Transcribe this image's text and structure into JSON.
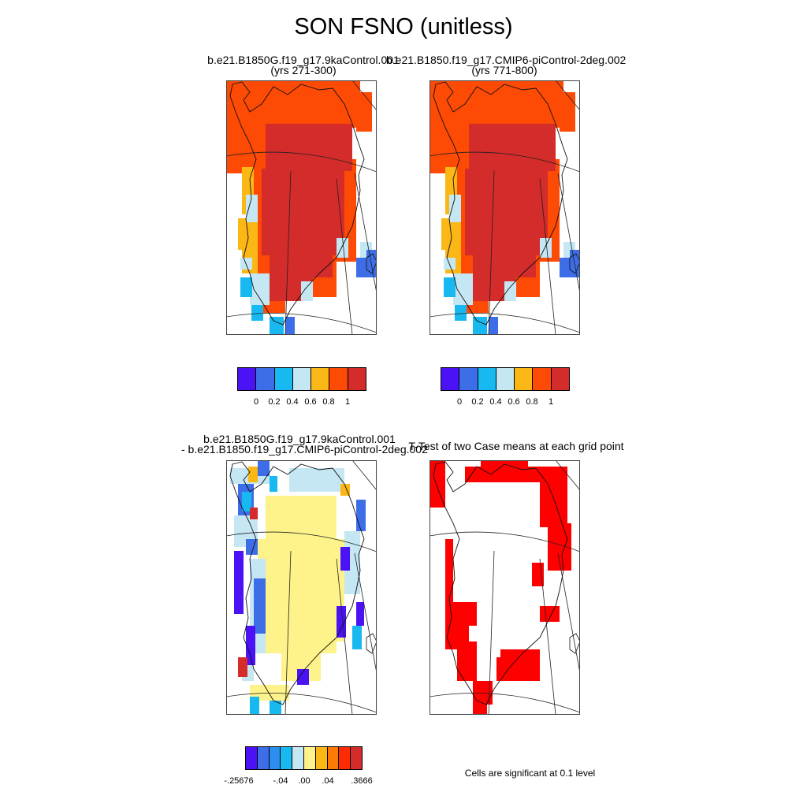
{
  "title": "SON FSNO (unitless)",
  "panels": {
    "case1": {
      "name": "b.e21.B1850G.f19_g17.9kaControl.001",
      "years": "(yrs 271-300)"
    },
    "case2": {
      "name": "b.e21.B1850.f19_g17.CMIP6-piControl-2deg.002",
      "years": "(yrs 771-800)"
    },
    "diff": {
      "line1": "b.e21.B1850G.f19_g17.9kaControl.001",
      "line2": "- b.e21.B1850.f19_g17.CMIP6-piControl-2deg.002"
    },
    "ttest": {
      "title": "T-Test of two Case means at each grid point",
      "note": "Cells are significant at 0.1 level"
    }
  },
  "colorbars": {
    "main": {
      "colors": [
        "#4a12f5",
        "#3d6ee8",
        "#17b9f0",
        "#c5e7f4",
        "#fbb716",
        "#fd4a04",
        "#d42b2b"
      ],
      "labels": [
        "0",
        "0.2",
        "0.4",
        "0.6",
        "0.8",
        "1"
      ]
    },
    "diff": {
      "colors": [
        "#4a12f5",
        "#3d6ee8",
        "#2b8ef0",
        "#17b9f0",
        "#c5e7f4",
        "#fdf38a",
        "#fbb716",
        "#fd7a04",
        "#fd2a04",
        "#d42b2b"
      ],
      "labels": [
        "-.25676",
        "-.04",
        ".00",
        ".04",
        ".3666"
      ]
    }
  },
  "colors": {
    "dark_red": "#d42b2b",
    "orange_red": "#fd4a04",
    "orange": "#fbb716",
    "light_blue": "#c5e7f4",
    "cyan": "#17b9f0",
    "blue": "#3d6ee8",
    "yellow": "#fdf38a",
    "significance_red": "#ff0000"
  }
}
